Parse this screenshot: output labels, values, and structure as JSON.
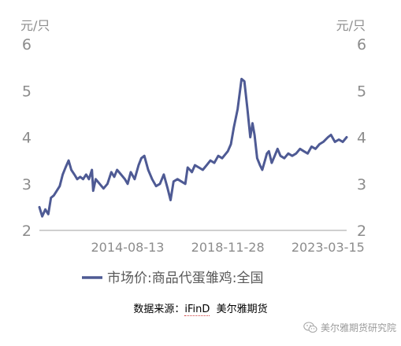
{
  "chart_data": {
    "type": "line",
    "title": "",
    "xlabel": "",
    "ylabel": "",
    "unit_left": "元/只",
    "unit_right": "元/只",
    "ylim": [
      2,
      6
    ],
    "yticks": [
      "2",
      "3",
      "4",
      "5",
      "6"
    ],
    "xlim": [
      "2010-11-01",
      "2024-01-01"
    ],
    "xticks": [
      "2014-08-13",
      "2018-11-28",
      "2023-03-15"
    ],
    "grid": false,
    "legend_position": "bottom",
    "series": [
      {
        "name": "市场价:商品代蛋雏鸡:全国",
        "color": "#4e5a94",
        "x": [
          "2010-11-01",
          "2010-12-15",
          "2011-02-01",
          "2011-03-20",
          "2011-05-01",
          "2011-06-15",
          "2011-08-01",
          "2011-09-15",
          "2011-11-01",
          "2011-12-15",
          "2012-02-01",
          "2012-03-15",
          "2012-05-01",
          "2012-06-15",
          "2012-08-01",
          "2012-09-15",
          "2012-11-01",
          "2012-12-15",
          "2013-02-01",
          "2013-02-20",
          "2013-04-01",
          "2013-06-01",
          "2013-08-01",
          "2013-10-01",
          "2013-12-01",
          "2014-01-15",
          "2014-03-01",
          "2014-05-01",
          "2014-07-01",
          "2014-08-13",
          "2014-10-01",
          "2014-12-01",
          "2015-02-01",
          "2015-03-15",
          "2015-05-01",
          "2015-07-01",
          "2015-09-01",
          "2015-11-01",
          "2016-01-01",
          "2016-03-01",
          "2016-05-01",
          "2016-06-15",
          "2016-08-01",
          "2016-10-01",
          "2016-12-01",
          "2017-02-01",
          "2017-03-10",
          "2017-04-15",
          "2017-05-15",
          "2017-07-01",
          "2017-09-01",
          "2017-11-01",
          "2018-01-01",
          "2018-03-01",
          "2018-05-01",
          "2018-07-01",
          "2018-09-01",
          "2018-11-28",
          "2019-01-15",
          "2019-03-01",
          "2019-05-01",
          "2019-07-01",
          "2019-08-15",
          "2019-10-01",
          "2019-11-15",
          "2019-12-20",
          "2020-01-20",
          "2020-03-01",
          "2020-04-15",
          "2020-05-20",
          "2020-07-01",
          "2020-08-01",
          "2020-09-01",
          "2020-10-15",
          "2020-12-01",
          "2021-01-15",
          "2021-03-01",
          "2021-05-01",
          "2021-07-01",
          "2021-09-01",
          "2021-11-01",
          "2022-01-01",
          "2022-03-01",
          "2022-05-01",
          "2022-07-01",
          "2022-09-01",
          "2022-11-01",
          "2023-01-01",
          "2023-03-15",
          "2023-05-01",
          "2023-07-01",
          "2023-09-01",
          "2023-11-01",
          "2024-01-01"
        ],
        "y": [
          2.5,
          2.3,
          2.45,
          2.35,
          2.7,
          2.75,
          2.85,
          2.95,
          3.2,
          3.35,
          3.5,
          3.3,
          3.2,
          3.1,
          3.15,
          3.1,
          3.2,
          3.1,
          3.3,
          2.85,
          3.1,
          3.0,
          2.9,
          3.0,
          3.25,
          3.15,
          3.3,
          3.2,
          3.1,
          3.0,
          3.25,
          3.1,
          3.4,
          3.55,
          3.6,
          3.3,
          3.1,
          2.95,
          3.0,
          3.2,
          2.9,
          2.65,
          3.05,
          3.1,
          3.05,
          3.0,
          3.35,
          3.3,
          3.25,
          3.4,
          3.35,
          3.3,
          3.4,
          3.5,
          3.45,
          3.6,
          3.55,
          3.7,
          3.85,
          4.2,
          4.6,
          5.25,
          5.2,
          4.6,
          4.0,
          4.3,
          4.05,
          3.55,
          3.4,
          3.3,
          3.5,
          3.65,
          3.7,
          3.45,
          3.6,
          3.75,
          3.6,
          3.55,
          3.65,
          3.6,
          3.65,
          3.75,
          3.7,
          3.65,
          3.8,
          3.75,
          3.85,
          3.9,
          4.0,
          4.05,
          3.9,
          3.95,
          3.9,
          4.0
        ]
      }
    ]
  },
  "source": {
    "label": "数据来源：",
    "name": "iFinD",
    "org": "美尔雅期货"
  },
  "watermark": {
    "icon": "wechat-icon",
    "text": "美尔雅期货研究院"
  }
}
